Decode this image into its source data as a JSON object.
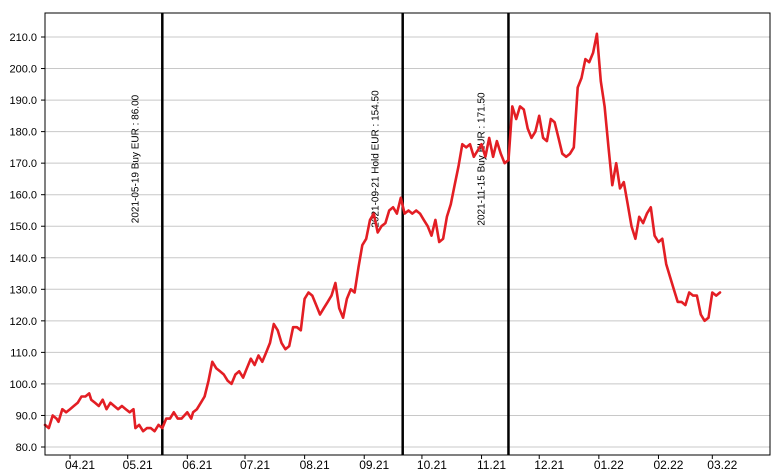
{
  "chart_data": {
    "type": "line",
    "ylim": [
      80,
      210
    ],
    "yticks": [
      80,
      90,
      100,
      110,
      120,
      130,
      140,
      150,
      160,
      170,
      180,
      190,
      200,
      210
    ],
    "ytick_labels": [
      "80.0",
      "90.0",
      "100.0",
      "110.0",
      "120.0",
      "130.0",
      "140.0",
      "150.0",
      "160.0",
      "170.0",
      "180.0",
      "190.0",
      "200.0",
      "210.0"
    ],
    "x_range": [
      "2021-03-19",
      "2022-03-31"
    ],
    "xticks": [
      {
        "date": "2021-04-01",
        "label": "04.21"
      },
      {
        "date": "2021-05-01",
        "label": "05.21"
      },
      {
        "date": "2021-06-01",
        "label": "06.21"
      },
      {
        "date": "2021-07-01",
        "label": "07.21"
      },
      {
        "date": "2021-08-01",
        "label": "08.21"
      },
      {
        "date": "2021-09-01",
        "label": "09.21"
      },
      {
        "date": "2021-10-01",
        "label": "10.21"
      },
      {
        "date": "2021-11-01",
        "label": "11.21"
      },
      {
        "date": "2021-12-01",
        "label": "12.21"
      },
      {
        "date": "2022-01-01",
        "label": "01.22"
      },
      {
        "date": "2022-02-01",
        "label": "02.22"
      },
      {
        "date": "2022-03-01",
        "label": "03.22"
      }
    ],
    "grid": "horizontal",
    "series": [
      {
        "color": "#e31e24",
        "points": [
          [
            "2021-03-19",
            87
          ],
          [
            "2021-03-21",
            86
          ],
          [
            "2021-03-23",
            90
          ],
          [
            "2021-03-25",
            89
          ],
          [
            "2021-03-26",
            88
          ],
          [
            "2021-03-28",
            92
          ],
          [
            "2021-03-30",
            91
          ],
          [
            "2021-04-01",
            92
          ],
          [
            "2021-04-03",
            93
          ],
          [
            "2021-04-05",
            94
          ],
          [
            "2021-04-07",
            96
          ],
          [
            "2021-04-09",
            96
          ],
          [
            "2021-04-11",
            97
          ],
          [
            "2021-04-12",
            95
          ],
          [
            "2021-04-14",
            94
          ],
          [
            "2021-04-16",
            93
          ],
          [
            "2021-04-18",
            95
          ],
          [
            "2021-04-20",
            92
          ],
          [
            "2021-04-22",
            94
          ],
          [
            "2021-04-24",
            93
          ],
          [
            "2021-04-26",
            92
          ],
          [
            "2021-04-28",
            93
          ],
          [
            "2021-04-30",
            92
          ],
          [
            "2021-05-02",
            91
          ],
          [
            "2021-05-04",
            92
          ],
          [
            "2021-05-05",
            86
          ],
          [
            "2021-05-07",
            87
          ],
          [
            "2021-05-09",
            85
          ],
          [
            "2021-05-11",
            86
          ],
          [
            "2021-05-13",
            86
          ],
          [
            "2021-05-15",
            85
          ],
          [
            "2021-05-17",
            87
          ],
          [
            "2021-05-19",
            86
          ],
          [
            "2021-05-21",
            89
          ],
          [
            "2021-05-23",
            89
          ],
          [
            "2021-05-25",
            91
          ],
          [
            "2021-05-27",
            89
          ],
          [
            "2021-05-29",
            89
          ],
          [
            "2021-06-01",
            91
          ],
          [
            "2021-06-03",
            89
          ],
          [
            "2021-06-04",
            91
          ],
          [
            "2021-06-06",
            92
          ],
          [
            "2021-06-08",
            94
          ],
          [
            "2021-06-10",
            96
          ],
          [
            "2021-06-12",
            101
          ],
          [
            "2021-06-14",
            107
          ],
          [
            "2021-06-16",
            105
          ],
          [
            "2021-06-18",
            104
          ],
          [
            "2021-06-20",
            103
          ],
          [
            "2021-06-22",
            101
          ],
          [
            "2021-06-24",
            100
          ],
          [
            "2021-06-26",
            103
          ],
          [
            "2021-06-28",
            104
          ],
          [
            "2021-06-30",
            102
          ],
          [
            "2021-07-02",
            105
          ],
          [
            "2021-07-04",
            108
          ],
          [
            "2021-07-06",
            106
          ],
          [
            "2021-07-08",
            109
          ],
          [
            "2021-07-10",
            107
          ],
          [
            "2021-07-12",
            110
          ],
          [
            "2021-07-14",
            113
          ],
          [
            "2021-07-16",
            119
          ],
          [
            "2021-07-18",
            117
          ],
          [
            "2021-07-20",
            113
          ],
          [
            "2021-07-22",
            111
          ],
          [
            "2021-07-24",
            112
          ],
          [
            "2021-07-26",
            118
          ],
          [
            "2021-07-28",
            118
          ],
          [
            "2021-07-30",
            117
          ],
          [
            "2021-08-01",
            127
          ],
          [
            "2021-08-03",
            129
          ],
          [
            "2021-08-05",
            128
          ],
          [
            "2021-08-07",
            125
          ],
          [
            "2021-08-09",
            122
          ],
          [
            "2021-08-11",
            124
          ],
          [
            "2021-08-13",
            126
          ],
          [
            "2021-08-15",
            128
          ],
          [
            "2021-08-17",
            132
          ],
          [
            "2021-08-19",
            124
          ],
          [
            "2021-08-21",
            121
          ],
          [
            "2021-08-23",
            127
          ],
          [
            "2021-08-25",
            130
          ],
          [
            "2021-08-27",
            129
          ],
          [
            "2021-08-29",
            137
          ],
          [
            "2021-08-31",
            144
          ],
          [
            "2021-09-02",
            146
          ],
          [
            "2021-09-04",
            152
          ],
          [
            "2021-09-06",
            154
          ],
          [
            "2021-09-08",
            148
          ],
          [
            "2021-09-10",
            150
          ],
          [
            "2021-09-12",
            151
          ],
          [
            "2021-09-14",
            155
          ],
          [
            "2021-09-16",
            156
          ],
          [
            "2021-09-18",
            154
          ],
          [
            "2021-09-20",
            159
          ],
          [
            "2021-09-22",
            154
          ],
          [
            "2021-09-24",
            155
          ],
          [
            "2021-09-26",
            154
          ],
          [
            "2021-09-28",
            155
          ],
          [
            "2021-09-30",
            154
          ],
          [
            "2021-10-02",
            152
          ],
          [
            "2021-10-04",
            150
          ],
          [
            "2021-10-06",
            147
          ],
          [
            "2021-10-08",
            152
          ],
          [
            "2021-10-10",
            145
          ],
          [
            "2021-10-12",
            146
          ],
          [
            "2021-10-14",
            153
          ],
          [
            "2021-10-16",
            157
          ],
          [
            "2021-10-18",
            163
          ],
          [
            "2021-10-20",
            169
          ],
          [
            "2021-10-22",
            176
          ],
          [
            "2021-10-24",
            175
          ],
          [
            "2021-10-26",
            176
          ],
          [
            "2021-10-28",
            172
          ],
          [
            "2021-10-30",
            174
          ],
          [
            "2021-11-01",
            176
          ],
          [
            "2021-11-03",
            172
          ],
          [
            "2021-11-05",
            178
          ],
          [
            "2021-11-07",
            172
          ],
          [
            "2021-11-09",
            177
          ],
          [
            "2021-11-11",
            173
          ],
          [
            "2021-11-13",
            170
          ],
          [
            "2021-11-15",
            171
          ],
          [
            "2021-11-17",
            188
          ],
          [
            "2021-11-19",
            184
          ],
          [
            "2021-11-21",
            188
          ],
          [
            "2021-11-23",
            187
          ],
          [
            "2021-11-25",
            181
          ],
          [
            "2021-11-27",
            178
          ],
          [
            "2021-11-29",
            180
          ],
          [
            "2021-12-01",
            185
          ],
          [
            "2021-12-03",
            178
          ],
          [
            "2021-12-05",
            177
          ],
          [
            "2021-12-07",
            184
          ],
          [
            "2021-12-09",
            183
          ],
          [
            "2021-12-11",
            178
          ],
          [
            "2021-12-13",
            173
          ],
          [
            "2021-12-15",
            172
          ],
          [
            "2021-12-17",
            173
          ],
          [
            "2021-12-19",
            175
          ],
          [
            "2021-12-21",
            194
          ],
          [
            "2021-12-23",
            197
          ],
          [
            "2021-12-25",
            203
          ],
          [
            "2021-12-27",
            202
          ],
          [
            "2021-12-29",
            205
          ],
          [
            "2021-12-31",
            211
          ],
          [
            "2022-01-02",
            196
          ],
          [
            "2022-01-04",
            188
          ],
          [
            "2022-01-06",
            175
          ],
          [
            "2022-01-08",
            163
          ],
          [
            "2022-01-10",
            170
          ],
          [
            "2022-01-12",
            162
          ],
          [
            "2022-01-14",
            164
          ],
          [
            "2022-01-16",
            157
          ],
          [
            "2022-01-18",
            150
          ],
          [
            "2022-01-20",
            146
          ],
          [
            "2022-01-22",
            153
          ],
          [
            "2022-01-24",
            151
          ],
          [
            "2022-01-26",
            154
          ],
          [
            "2022-01-28",
            156
          ],
          [
            "2022-01-30",
            147
          ],
          [
            "2022-02-01",
            145
          ],
          [
            "2022-02-03",
            146
          ],
          [
            "2022-02-05",
            138
          ],
          [
            "2022-02-07",
            134
          ],
          [
            "2022-02-09",
            130
          ],
          [
            "2022-02-11",
            126
          ],
          [
            "2022-02-13",
            126
          ],
          [
            "2022-02-15",
            125
          ],
          [
            "2022-02-17",
            129
          ],
          [
            "2022-02-19",
            128
          ],
          [
            "2022-02-21",
            128
          ],
          [
            "2022-02-23",
            122
          ],
          [
            "2022-02-25",
            120
          ],
          [
            "2022-02-27",
            121
          ],
          [
            "2022-03-01",
            129
          ],
          [
            "2022-03-03",
            128
          ],
          [
            "2022-03-05",
            129
          ]
        ]
      }
    ],
    "annotations": [
      {
        "date": "2021-05-19",
        "label": "2021-05-19 Buy EUR : 86.00",
        "y": 86.0
      },
      {
        "date": "2021-09-21",
        "label": "2021-09-21 Hold EUR : 154.50",
        "y": 154.5
      },
      {
        "date": "2021-11-15",
        "label": "2021-11-15 Buy EUR : 171.50",
        "y": 171.5
      }
    ]
  }
}
